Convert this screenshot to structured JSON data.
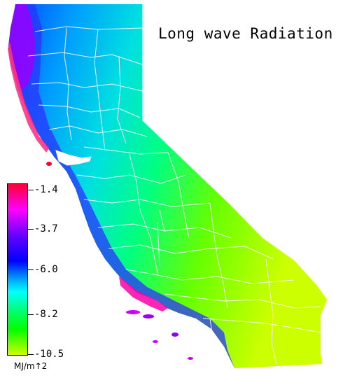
{
  "map": {
    "title": "Long wave Radiation",
    "variable": "Long wave Radiation",
    "region": "California",
    "boundaries": "county lines"
  },
  "legend": {
    "unit": "MJ/m↑2",
    "ticks": [
      "-1.4",
      "-3.7",
      "-6.0",
      "-8.2",
      "-10.5"
    ],
    "min": -10.5,
    "max": -1.4,
    "colormap": [
      "#ff0033",
      "#ff00ff",
      "#6600ff",
      "#0000ff",
      "#0066ff",
      "#00ccff",
      "#00ff99",
      "#00ff00",
      "#66ff00",
      "#ccff00"
    ]
  }
}
